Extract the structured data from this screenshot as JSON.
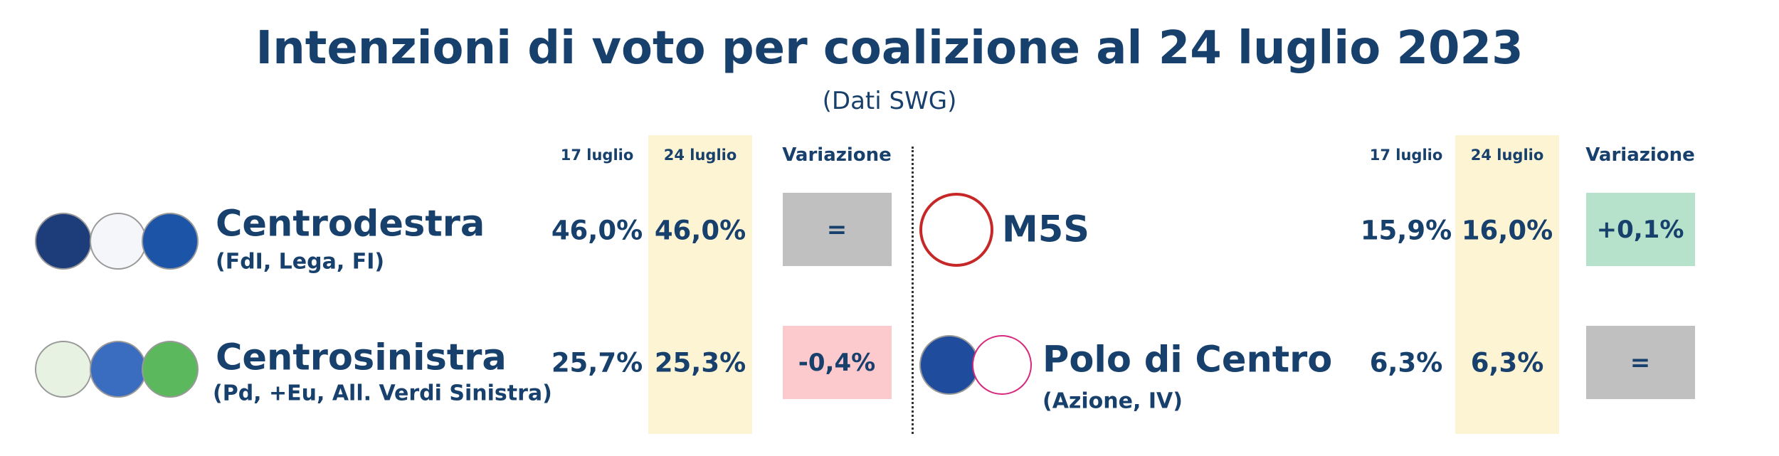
{
  "header": {
    "title": "Intenzioni di voto per coalizione al 24 luglio 2023",
    "subtitle": "(Dati SWG)"
  },
  "panels": [
    {
      "columns": [
        "17 luglio",
        "24 luglio",
        "Variazione"
      ],
      "rows": [
        {
          "name": "Centrodestra",
          "detail": "(FdI, Lega, FI)",
          "values": [
            "46,0%",
            "46,0%"
          ],
          "change": "="
        },
        {
          "name": "Centrosinistra",
          "detail": "(Pd, +Eu, All. Verdi Sinistra)",
          "values": [
            "25,7%",
            "25,3%"
          ],
          "change": "-0,4%"
        }
      ]
    },
    {
      "columns": [
        "17 luglio",
        "24 luglio",
        "Variazione"
      ],
      "rows": [
        {
          "name": "M5S",
          "values": [
            "15,9%",
            "16,0%"
          ],
          "change": "+0,1%"
        },
        {
          "name": "Polo di Centro",
          "detail": "(Azione, IV)",
          "values": [
            "6,3%",
            "6,3%"
          ],
          "change": "="
        }
      ]
    }
  ]
}
